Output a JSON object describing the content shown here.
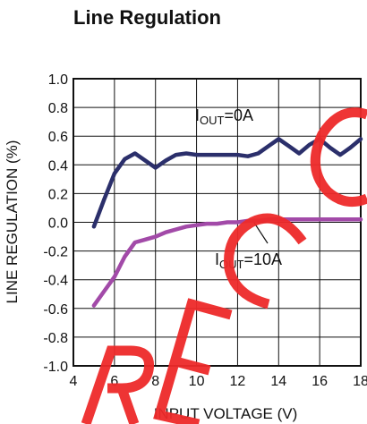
{
  "chart_data": {
    "type": "line",
    "title": "Line Regulation",
    "xlabel": "INPUT VOLTAGE (V)",
    "ylabel": "LINE REGULATION (%)",
    "xlim": [
      4,
      18
    ],
    "ylim": [
      -1.0,
      1.0
    ],
    "x_ticks": [
      "4",
      "6",
      "8",
      "10",
      "12",
      "14",
      "16",
      "18"
    ],
    "y_ticks": [
      "1.0",
      "0.8",
      "0.6",
      "0.4",
      "0.2",
      "0.0",
      "-0.2",
      "-0.4",
      "-0.6",
      "-0.8",
      "-1.0"
    ],
    "grid": true,
    "series": [
      {
        "name": "IOUT=0A",
        "color": "#2b2f6b",
        "x": [
          5.0,
          5.5,
          6.0,
          6.5,
          7.0,
          7.5,
          8.0,
          8.5,
          9.0,
          9.5,
          10.0,
          10.5,
          11.0,
          11.5,
          12.0,
          12.5,
          13.0,
          13.5,
          14.0,
          14.5,
          15.0,
          15.5,
          16.0,
          16.5,
          17.0,
          17.5,
          18.0
        ],
        "y": [
          -0.03,
          0.16,
          0.34,
          0.44,
          0.48,
          0.43,
          0.38,
          0.43,
          0.47,
          0.48,
          0.47,
          0.47,
          0.47,
          0.47,
          0.47,
          0.46,
          0.48,
          0.53,
          0.58,
          0.53,
          0.48,
          0.54,
          0.58,
          0.52,
          0.47,
          0.52,
          0.58
        ]
      },
      {
        "name": "IOUT=10A",
        "color": "#a24aa8",
        "x": [
          5.0,
          5.5,
          6.0,
          6.5,
          7.0,
          7.5,
          8.0,
          8.5,
          9.0,
          9.5,
          10.0,
          10.5,
          11.0,
          11.5,
          12.0,
          12.5,
          13.0,
          13.5,
          14.0,
          15.0,
          16.0,
          17.0,
          18.0
        ],
        "y": [
          -0.58,
          -0.48,
          -0.38,
          -0.24,
          -0.14,
          -0.12,
          -0.1,
          -0.07,
          -0.05,
          -0.03,
          -0.02,
          -0.01,
          -0.01,
          0.0,
          0.0,
          0.01,
          0.01,
          0.02,
          0.02,
          0.02,
          0.02,
          0.02,
          0.02
        ]
      }
    ],
    "annotations": [
      {
        "main": "I",
        "sub": "OUT",
        "rest": "=0A"
      },
      {
        "main": "I",
        "sub": "OUT",
        "rest": "=10A"
      }
    ]
  },
  "watermark": {
    "letters": [
      "R",
      "E",
      "C",
      "C"
    ],
    "color": "#ee2a2a"
  }
}
